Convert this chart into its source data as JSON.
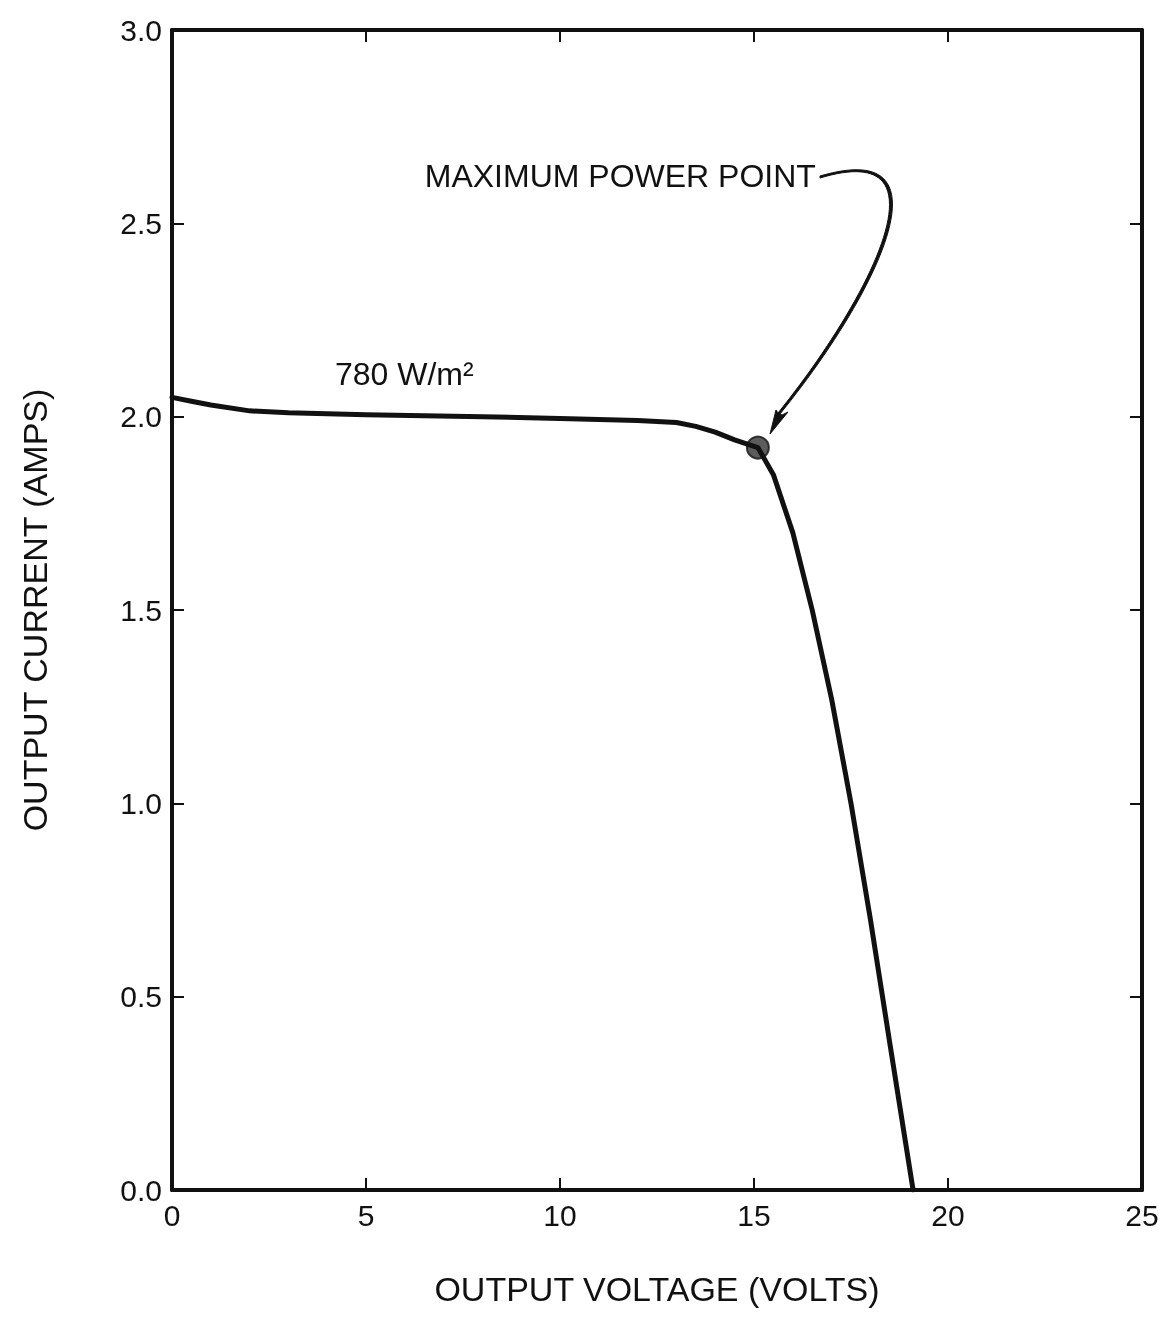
{
  "chart_data": {
    "type": "line",
    "xlabel": "OUTPUT VOLTAGE (VOLTS)",
    "ylabel": "OUTPUT CURRENT (AMPS)",
    "x": [
      0,
      0.5,
      1,
      2,
      3,
      5,
      8,
      10,
      12,
      13,
      13.5,
      14,
      14.5,
      15.1,
      15.5,
      16,
      16.5,
      17,
      17.5,
      18,
      18.5,
      19.1
    ],
    "series": [
      {
        "color": "#111111",
        "values": [
          2.05,
          2.04,
          2.03,
          2.015,
          2.01,
          2.005,
          2.0,
          1.995,
          1.99,
          1.985,
          1.975,
          1.96,
          1.94,
          1.92,
          1.85,
          1.7,
          1.5,
          1.27,
          1.0,
          0.7,
          0.38,
          0.0
        ]
      },
      {
        "type": "scatter",
        "x": [
          15.1
        ],
        "color": "#333333",
        "values": [
          1.92
        ]
      }
    ],
    "xlim": [
      0,
      25
    ],
    "ylim": [
      0,
      3
    ],
    "xticks": [
      0,
      5,
      10,
      15,
      20,
      25
    ],
    "yticks": [
      {
        "value": 0,
        "label": "0.0"
      },
      {
        "value": 0.5,
        "label": "0.5"
      },
      {
        "value": 1,
        "label": "1.0"
      },
      {
        "value": 1.5,
        "label": "1.5"
      },
      {
        "value": 2,
        "label": "2.0"
      },
      {
        "value": 2.5,
        "label": "2.5"
      },
      {
        "value": 3,
        "label": "3.0"
      }
    ],
    "annotations": [
      "780 W/m²",
      "MAXIMUM POWER POINT"
    ]
  }
}
